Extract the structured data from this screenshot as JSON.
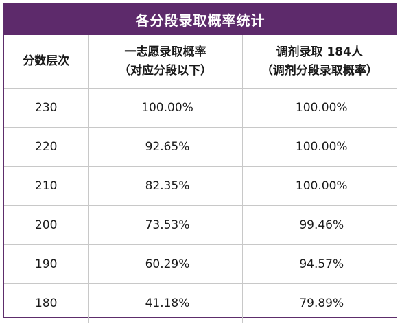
{
  "title": "各分段录取概率统计",
  "headers": {
    "col1": "分数层次",
    "col2_line1": "一志愿录取概率",
    "col2_line2": "（对应分段以下）",
    "col3_line1": "调剂录取 184人",
    "col3_line2": "（调剂分段录取概率）"
  },
  "rows": [
    {
      "score": "230",
      "first_choice": "100.00%",
      "adjusted": "100.00%"
    },
    {
      "score": "220",
      "first_choice": "92.65%",
      "adjusted": "100.00%"
    },
    {
      "score": "210",
      "first_choice": "82.35%",
      "adjusted": "100.00%"
    },
    {
      "score": "200",
      "first_choice": "73.53%",
      "adjusted": "99.46%"
    },
    {
      "score": "190",
      "first_choice": "60.29%",
      "adjusted": "94.57%"
    },
    {
      "score": "180",
      "first_choice": "41.18%",
      "adjusted": "79.89%"
    }
  ],
  "colors": {
    "title_bg": "#5d2a6b",
    "title_text": "#ffffff",
    "grid": "#c8c8c8"
  }
}
